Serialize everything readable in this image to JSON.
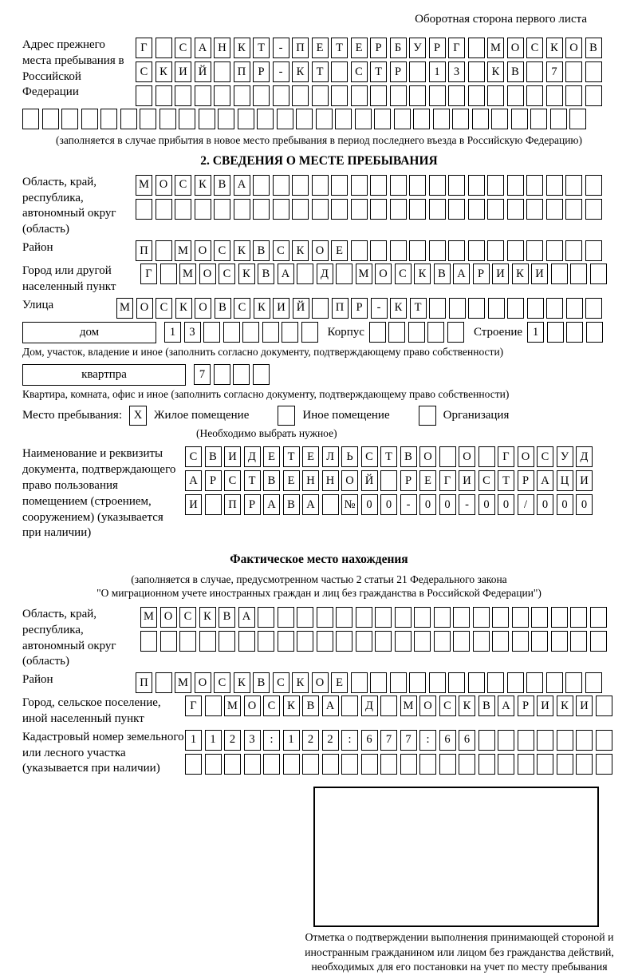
{
  "page": {
    "header_note": "Оборотная сторона первого листа"
  },
  "prev_address": {
    "label": "Адрес прежнего места пребывания в Российской Федерации",
    "rows": {
      "r1": "Г САНКТ-ПЕТЕРБУРГ МОСКОВ",
      "r2": "СКИЙ ПР-КТ СТР 13 КВ 7",
      "r3": "",
      "r4": ""
    },
    "caption": "(заполняется в случае прибытия в новое место пребывания в период последнего въезда в Российскую Федерацию)"
  },
  "section2": {
    "title": "2. СВЕДЕНИЯ О МЕСТЕ ПРЕБЫВАНИЯ",
    "region": {
      "label": "Область, край, республика, автономный округ (область)",
      "r1": "МОСКВА",
      "r2": ""
    },
    "district": {
      "label": "Район",
      "r1": "П МОСКВСКОЕ"
    },
    "city": {
      "label": "Город или другой населенный пункт",
      "r1": "Г МОСКВА Д МОСКВАРИКИ"
    },
    "street": {
      "label": "Улица",
      "r1": "МОСКОВСКИЙ ПР-КТ"
    },
    "house": {
      "label": "дом",
      "value": "13",
      "korpus_label": "Корпус",
      "korpus_value": "",
      "stroenie_label": "Строение",
      "stroenie_value": "1"
    },
    "house_caption": "Дом, участок, владение и иное (заполнить согласно документу, подтверждающему право собственности)",
    "apartment": {
      "label": "квартпра",
      "value": "7"
    },
    "apartment_caption": "Квартира, комната, офис и иное (заполнить согласно документу, подтверждающему право собственности)",
    "stay_type": {
      "label": "Место пребывания:",
      "opt1": {
        "checked": "X",
        "label": "Жилое помещение"
      },
      "opt2": {
        "checked": "",
        "label": "Иное помещение"
      },
      "opt3": {
        "checked": "",
        "label": "Организация"
      },
      "hint": "(Необходимо выбрать нужное)"
    },
    "document": {
      "label": "Наименование и реквизиты документа, подтверждающего право пользования помещением (строением, сооружением) (указывается при наличии)",
      "r1": "СВИДЕТЕЛЬСТВО О ГОСУД",
      "r2": "АРСТВЕННОЙ РЕГИСТРАЦИ",
      "r3": "И ПРАВА №00-00-00/000"
    }
  },
  "actual_location": {
    "title": "Фактическое место нахождения",
    "caption_line1": "(заполняется в случае, предусмотренном частью 2 статьи 21 Федерального закона",
    "caption_line2": "\"О миграционном учете иностранных граждан и лиц без гражданства в Российской Федерации\")",
    "region": {
      "label": "Область, край, республика, автономный округ (область)",
      "r1": "МОСКВА",
      "r2": ""
    },
    "district": {
      "label": "Район",
      "r1": "П МОСКВСКОЕ"
    },
    "city": {
      "label": "Город, сельское поселение, иной населенный пункт",
      "r1": "Г МОСКВА Д МОСКВАРИКИ"
    },
    "cadastral": {
      "label": "Кадастровый номер земельного или лесного участка (указывается при наличии)",
      "r1": "1123:122:677:66",
      "r2": ""
    },
    "stamp_caption": "Отметка о подтверждении выполнения принимающей стороной и иностранным гражданином или лицом без гражданства действий, необходимых для его постановки на учет по месту пребывания"
  }
}
